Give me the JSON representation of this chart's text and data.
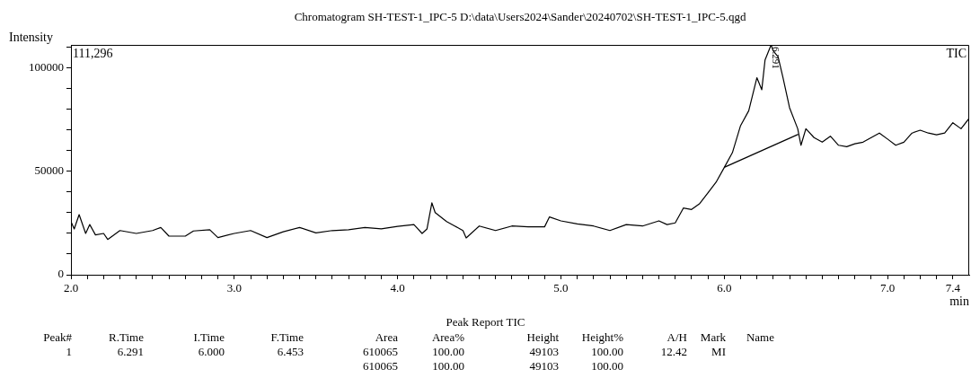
{
  "chart_data": {
    "type": "line",
    "title": "Chromatogram SH-TEST-1_IPC-5 D:\\data\\Users2024\\Sander\\20240702\\SH-TEST-1_IPC-5.qgd",
    "xlabel": "min",
    "ylabel": "Intensity",
    "xlim": [
      2,
      7.5
    ],
    "ylim": [
      0,
      111296
    ],
    "xticks": [
      {
        "value": 2,
        "label": "2.0"
      },
      {
        "value": 2.1,
        "label": null
      },
      {
        "value": 2.2,
        "label": null
      },
      {
        "value": 2.3,
        "label": null
      },
      {
        "value": 2.4,
        "label": null
      },
      {
        "value": 2.5,
        "label": null
      },
      {
        "value": 2.6,
        "label": null
      },
      {
        "value": 2.7,
        "label": null
      },
      {
        "value": 2.8,
        "label": null
      },
      {
        "value": 2.9,
        "label": null
      },
      {
        "value": 3,
        "label": "3.0"
      },
      {
        "value": 3.1,
        "label": null
      },
      {
        "value": 3.2,
        "label": null
      },
      {
        "value": 3.3,
        "label": null
      },
      {
        "value": 3.4,
        "label": null
      },
      {
        "value": 3.5,
        "label": null
      },
      {
        "value": 3.6,
        "label": null
      },
      {
        "value": 3.7,
        "label": null
      },
      {
        "value": 3.8,
        "label": null
      },
      {
        "value": 3.9,
        "label": null
      },
      {
        "value": 4,
        "label": "4.0"
      },
      {
        "value": 4.1,
        "label": null
      },
      {
        "value": 4.2,
        "label": null
      },
      {
        "value": 4.3,
        "label": null
      },
      {
        "value": 4.4,
        "label": null
      },
      {
        "value": 4.5,
        "label": null
      },
      {
        "value": 4.6,
        "label": null
      },
      {
        "value": 4.7,
        "label": null
      },
      {
        "value": 4.8,
        "label": null
      },
      {
        "value": 4.9,
        "label": null
      },
      {
        "value": 5,
        "label": "5.0"
      },
      {
        "value": 5.1,
        "label": null
      },
      {
        "value": 5.2,
        "label": null
      },
      {
        "value": 5.3,
        "label": null
      },
      {
        "value": 5.4,
        "label": null
      },
      {
        "value": 5.5,
        "label": null
      },
      {
        "value": 5.6,
        "label": null
      },
      {
        "value": 5.7,
        "label": null
      },
      {
        "value": 5.8,
        "label": null
      },
      {
        "value": 5.9,
        "label": null
      },
      {
        "value": 6,
        "label": "6.0"
      },
      {
        "value": 6.1,
        "label": null
      },
      {
        "value": 6.2,
        "label": null
      },
      {
        "value": 6.3,
        "label": null
      },
      {
        "value": 6.4,
        "label": null
      },
      {
        "value": 6.5,
        "label": null
      },
      {
        "value": 6.6,
        "label": null
      },
      {
        "value": 6.7,
        "label": null
      },
      {
        "value": 6.8,
        "label": null
      },
      {
        "value": 6.9,
        "label": null
      },
      {
        "value": 7,
        "label": "7.0"
      },
      {
        "value": 7.1,
        "label": null
      },
      {
        "value": 7.2,
        "label": null
      },
      {
        "value": 7.3,
        "label": null
      },
      {
        "value": 7.4,
        "label": "7.4"
      }
    ],
    "yticks": [
      0,
      {
        "value": 10000,
        "label": null
      },
      {
        "value": 20000,
        "label": null
      },
      {
        "value": 30000,
        "label": null
      },
      {
        "value": 40000,
        "label": null
      },
      50000,
      {
        "value": 60000,
        "label": null
      },
      {
        "value": 70000,
        "label": null
      },
      {
        "value": 80000,
        "label": null
      },
      {
        "value": 90000,
        "label": null
      },
      100000,
      {
        "value": 110000,
        "label": null
      }
    ],
    "grid": false,
    "legend": "top right",
    "marker": "none",
    "series": [
      {
        "name": "TIC",
        "color": "#000000",
        "x": [
          2.0,
          2.02,
          2.05,
          2.09,
          2.115,
          2.15,
          2.2,
          2.225,
          2.3,
          2.4,
          2.5,
          2.55,
          2.6,
          2.7,
          2.75,
          2.85,
          2.9,
          3.0,
          3.1,
          3.2,
          3.3,
          3.4,
          3.5,
          3.6,
          3.7,
          3.8,
          3.9,
          4.0,
          4.1,
          4.15,
          4.18,
          4.21,
          4.23,
          4.3,
          4.35,
          4.4,
          4.42,
          4.5,
          4.6,
          4.7,
          4.8,
          4.9,
          4.93,
          5.0,
          5.1,
          5.2,
          5.3,
          5.4,
          5.5,
          5.6,
          5.65,
          5.7,
          5.75,
          5.8,
          5.85,
          5.9,
          5.95,
          6.0,
          6.05,
          6.1,
          6.15,
          6.2,
          6.23,
          6.25,
          6.287,
          6.3,
          6.33,
          6.36,
          6.4,
          6.45,
          6.47,
          6.5,
          6.55,
          6.6,
          6.65,
          6.7,
          6.75,
          6.8,
          6.85,
          6.9,
          6.95,
          7.0,
          7.05,
          7.1,
          7.15,
          7.2,
          7.25,
          7.3,
          7.35,
          7.4,
          7.45,
          7.5
        ],
        "values": [
          25800,
          22200,
          29100,
          20000,
          24300,
          19300,
          20000,
          17100,
          21400,
          20000,
          21400,
          22900,
          18700,
          18700,
          21200,
          21800,
          18000,
          20000,
          21400,
          18000,
          20800,
          22900,
          20300,
          21400,
          21800,
          22900,
          22200,
          23400,
          24300,
          20000,
          22200,
          34800,
          30100,
          25800,
          23600,
          21400,
          17800,
          23600,
          21400,
          23600,
          23200,
          23200,
          28000,
          26100,
          24600,
          23600,
          21400,
          24300,
          23600,
          26100,
          24300,
          25100,
          32300,
          31600,
          34500,
          39600,
          44800,
          51900,
          59100,
          72200,
          79400,
          95400,
          89600,
          104000,
          111296,
          108400,
          105500,
          95400,
          80900,
          70700,
          62700,
          70700,
          66400,
          64200,
          67100,
          62700,
          62000,
          63400,
          64200,
          66400,
          68600,
          65700,
          62700,
          64200,
          68600,
          70000,
          68600,
          67800,
          68600,
          73600,
          70700,
          75800
        ]
      },
      {
        "type": "line",
        "color": "#000000",
        "x": [
          6.0,
          6.453
        ],
        "values": [
          52000,
          68000
        ]
      }
    ],
    "annotations": [
      "111,296",
      {
        "text": "6.291",
        "x": 6.291,
        "y": 111296
      },
      "Peak Report TIC",
      "Peak#\tR.Time\tI.Time\tF.Time\tArea\tArea%\tHeight\tHeight%\tA/H\tMark\tName",
      "1\t6.291\t6.000\t6.453\t610065\t100.00\t49103\t100.00\t12.42\tMI\t",
      "\t\t\t\t610065\t100.00\t49103\t100.00\t\t\t"
    ]
  }
}
